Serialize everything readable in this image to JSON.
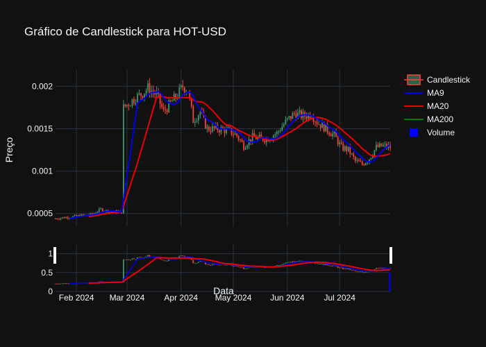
{
  "chart_data": {
    "type": "candlestick",
    "title": "Gráfico de Candlestick para HOT-USD",
    "xlabel": "Data",
    "ylabel": "Preço",
    "grid": true,
    "legend_position": "top-right",
    "x_range": [
      "2024-01-20",
      "2024-07-30"
    ],
    "y_range": [
      0.00035,
      0.0022
    ],
    "x_ticks": [
      {
        "label": "Feb 2024",
        "date": "2024-02-01"
      },
      {
        "label": "Mar 2024",
        "date": "2024-03-01"
      },
      {
        "label": "Apr 2024",
        "date": "2024-04-01"
      },
      {
        "label": "May 2024",
        "date": "2024-05-01"
      },
      {
        "label": "Jun 2024",
        "date": "2024-06-01"
      },
      {
        "label": "Jul 2024",
        "date": "2024-07-01"
      }
    ],
    "y_ticks": [
      {
        "label": "0.0005",
        "value": 0.0005
      },
      {
        "label": "0.001",
        "value": 0.001
      },
      {
        "label": "0.0015",
        "value": 0.0015
      },
      {
        "label": "0.002",
        "value": 0.002
      }
    ],
    "bottom_panel": {
      "y_range": [
        0,
        1.25
      ],
      "y_ticks": [
        {
          "label": "0",
          "value": 0
        },
        {
          "label": "0.5",
          "value": 0.5
        },
        {
          "label": "1",
          "value": 1
        }
      ]
    },
    "colors": {
      "increasing": "#3d9970",
      "decreasing": "#ff4136",
      "ma9": "#0000ee",
      "ma20": "#ee0000",
      "ma200": "#008000",
      "volume": "#0000ff",
      "grid": "#283442"
    },
    "legend": [
      {
        "label": "Candlestick",
        "key": "candle"
      },
      {
        "label": "MA9",
        "key": "ma9"
      },
      {
        "label": "MA20",
        "key": "ma20"
      },
      {
        "label": "MA200",
        "key": "ma200"
      },
      {
        "label": "Volume",
        "key": "volume"
      }
    ],
    "close_keypoints": [
      [
        "2024-01-20",
        0.00044
      ],
      [
        "2024-02-01",
        0.00047
      ],
      [
        "2024-02-10",
        0.00049
      ],
      [
        "2024-02-15",
        0.00055
      ],
      [
        "2024-02-20",
        0.00052
      ],
      [
        "2024-02-27",
        0.00052
      ],
      [
        "2024-02-28",
        0.00175
      ],
      [
        "2024-03-05",
        0.00185
      ],
      [
        "2024-03-10",
        0.00192
      ],
      [
        "2024-03-13",
        0.00198
      ],
      [
        "2024-03-18",
        0.0019
      ],
      [
        "2024-03-22",
        0.0017
      ],
      [
        "2024-03-26",
        0.0018
      ],
      [
        "2024-03-30",
        0.0019
      ],
      [
        "2024-04-02",
        0.002
      ],
      [
        "2024-04-05",
        0.00195
      ],
      [
        "2024-04-08",
        0.0016
      ],
      [
        "2024-04-12",
        0.0017
      ],
      [
        "2024-04-16",
        0.0015
      ],
      [
        "2024-04-22",
        0.0015
      ],
      [
        "2024-04-28",
        0.00148
      ],
      [
        "2024-05-03",
        0.00142
      ],
      [
        "2024-05-07",
        0.0013
      ],
      [
        "2024-05-12",
        0.0014
      ],
      [
        "2024-05-20",
        0.00138
      ],
      [
        "2024-05-26",
        0.00145
      ],
      [
        "2024-05-31",
        0.00158
      ],
      [
        "2024-06-05",
        0.00168
      ],
      [
        "2024-06-10",
        0.00165
      ],
      [
        "2024-06-15",
        0.00167
      ],
      [
        "2024-06-18",
        0.00158
      ],
      [
        "2024-06-22",
        0.00152
      ],
      [
        "2024-06-28",
        0.00142
      ],
      [
        "2024-07-02",
        0.00128
      ],
      [
        "2024-07-06",
        0.00125
      ],
      [
        "2024-07-10",
        0.00112
      ],
      [
        "2024-07-14",
        0.00108
      ],
      [
        "2024-07-18",
        0.00115
      ],
      [
        "2024-07-22",
        0.00128
      ],
      [
        "2024-07-26",
        0.0013
      ],
      [
        "2024-07-30",
        0.00128
      ]
    ]
  }
}
